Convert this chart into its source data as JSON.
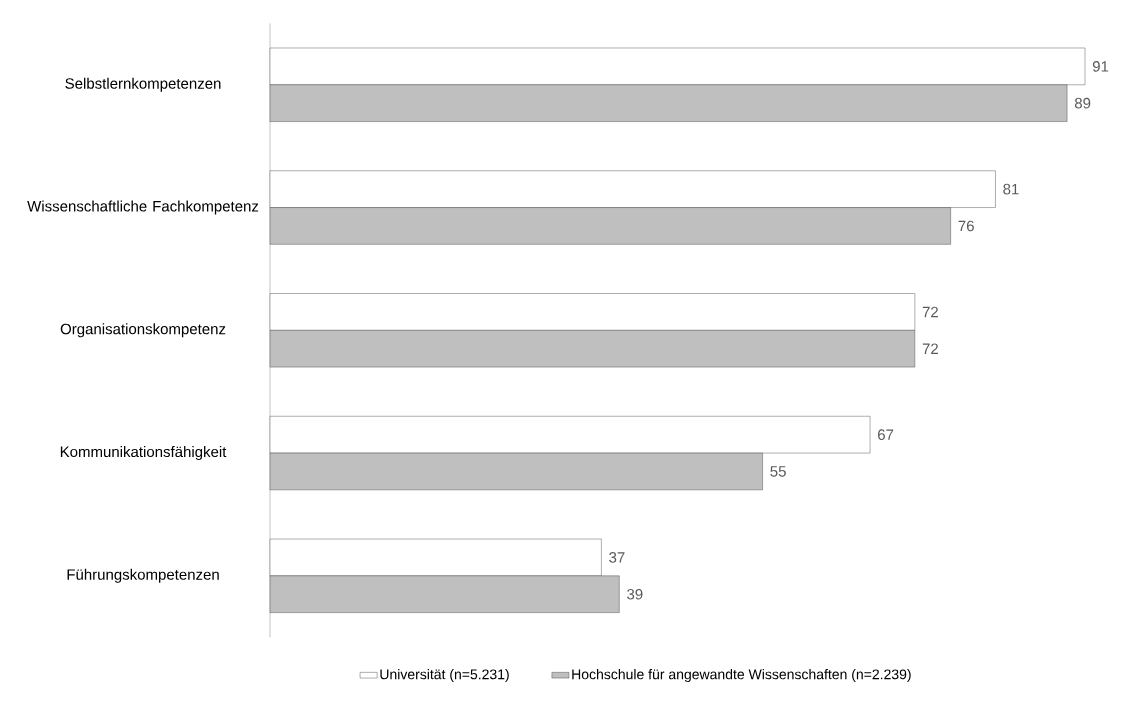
{
  "chart_data": {
    "type": "bar",
    "orientation": "horizontal",
    "categories": [
      "Selbstlernkompetenzen",
      "Wissenschaftliche Fachkompetenz",
      "Organisationskompetenz",
      "Kommunikationsfähigkeit",
      "Führungskompetenzen"
    ],
    "series": [
      {
        "name": "Universität (n=5.231)",
        "color": "#ffffff",
        "values": [
          91,
          81,
          72,
          67,
          37
        ]
      },
      {
        "name": "Hochschule für angewandte Wissenschaften (n=2.239)",
        "color": "#bfbfbf",
        "values": [
          89,
          76,
          72,
          55,
          39
        ]
      }
    ],
    "data_labels": true,
    "legend": "bottom",
    "tick_labels": "y"
  }
}
